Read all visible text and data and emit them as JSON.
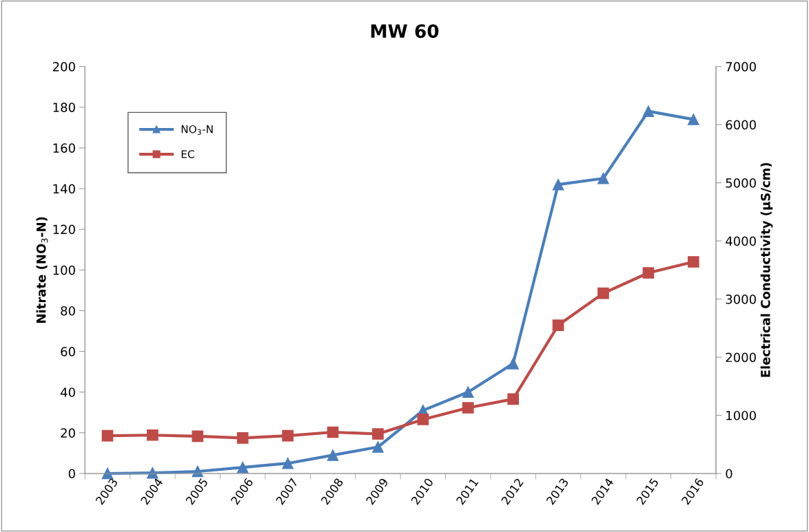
{
  "chart_data": {
    "type": "line",
    "title": "MW 60",
    "ylabel": "Nitrate (NO$_{3}$-N)",
    "y2label": "Electrical Conductivity (µS/cm)",
    "categories": [
      "2003",
      "2004",
      "2005",
      "2006",
      "2007",
      "2008",
      "2009",
      "2010",
      "2011",
      "2012",
      "2013",
      "2014",
      "2015",
      "2016"
    ],
    "series": [
      {
        "name": "NO$_{3}$-N",
        "color": "#4a7ebb",
        "marker": "triangle",
        "values": [
          0,
          0.3,
          1,
          3,
          5,
          9,
          13,
          31,
          40,
          54,
          142,
          145,
          178,
          174
        ]
      },
      {
        "name": "EC",
        "color": "#be4b48",
        "marker": "square",
        "axis": "y2",
        "values": [
          650,
          660,
          640,
          610,
          650,
          710,
          680,
          930,
          1130,
          1280,
          2550,
          3100,
          3450,
          3640
        ]
      }
    ],
    "ylim": [
      0,
      200
    ],
    "yticks": [
      0,
      20,
      40,
      60,
      80,
      100,
      120,
      140,
      160,
      180,
      200
    ],
    "y2lim": [
      0,
      7000
    ],
    "y2ticks": [
      0,
      1000,
      2000,
      3000,
      4000,
      5000,
      6000,
      7000
    ],
    "grid": false,
    "legend": "top left",
    "line_style": "solid"
  }
}
